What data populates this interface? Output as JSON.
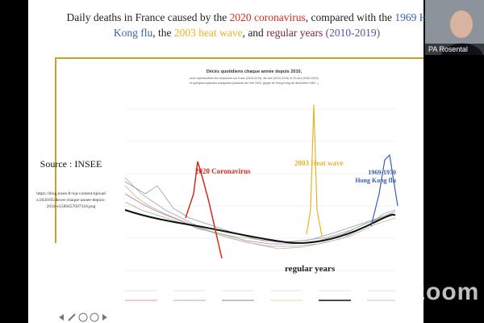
{
  "slide": {
    "title": [
      {
        "text": "Daily deaths in France caused by the ",
        "color": "#222222"
      },
      {
        "text": "2020 coronavirus",
        "color": "#d42a1e"
      },
      {
        "text": ", compared with the ",
        "color": "#222222"
      },
      {
        "text": "1969 H",
        "color": "#3a5fb0"
      },
      {
        "text": "Kong flu",
        "color": "#3a5fb0"
      },
      {
        "text": ", the ",
        "color": "#222222"
      },
      {
        "text": "2003 heat wave",
        "color": "#e6b422"
      },
      {
        "text": ", and ",
        "color": "#222222"
      },
      {
        "text": "regular years",
        "color": "#7a2a3a"
      },
      {
        "text": " (2010-2019)",
        "color": "#5a4fa0"
      }
    ],
    "source_label": "Source : INSEE",
    "source_url": "https://blog.insee.fr/wp-content/uploads/2020/05/deces-chaque-annee-depuis-2010-e1589457697318.png",
    "chart": {
      "title": "Décès quotidiens chaque année depuis 2010,",
      "subtitle": [
        "avec représentées les moyennes sur 5 ans (2015-2019), dix ans (2010-2019) et 20 ans (2000-2019)",
        "et quelques épisodes marquants (canicule de l'été 2003, grippe de Hong Kong de décembre 1969...)"
      ],
      "annotations": {
        "covid": "2020 Coronavirus",
        "heat": "2003 Heat wave",
        "flu_1": "1969-1970",
        "flu_2": "Hong Kong flu",
        "regular": "regular years"
      }
    }
  },
  "video": {
    "name": "PA Rosental"
  },
  "watermark": "zoom"
}
